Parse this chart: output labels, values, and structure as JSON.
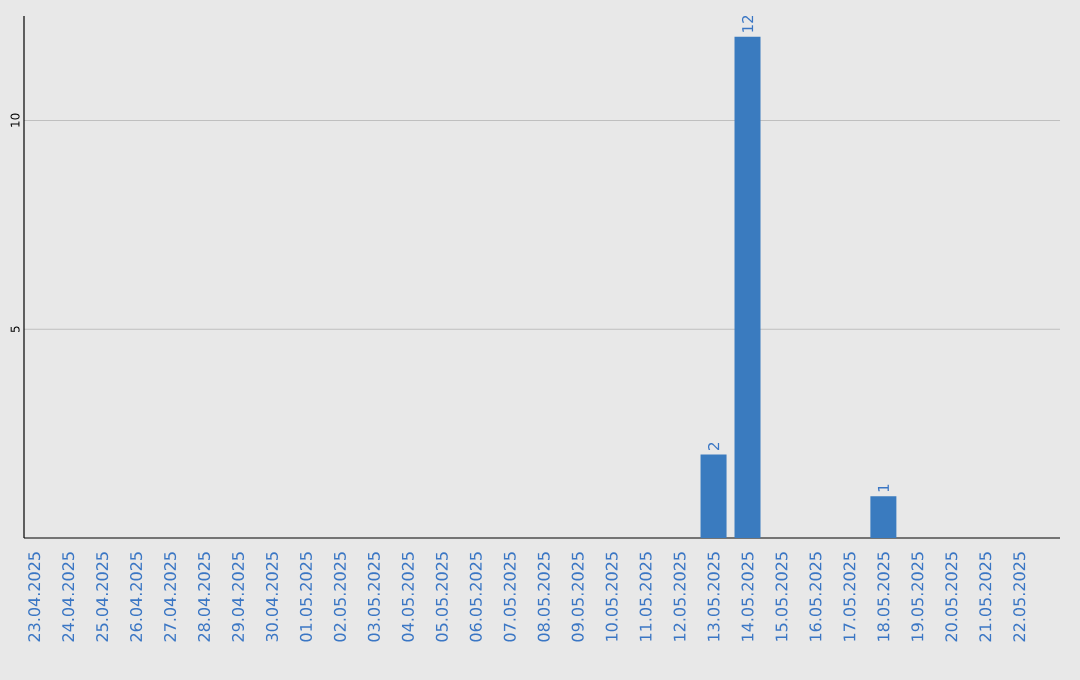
{
  "chart_data": {
    "type": "bar",
    "categories": [
      "23.04.2025",
      "24.04.2025",
      "25.04.2025",
      "26.04.2025",
      "27.04.2025",
      "28.04.2025",
      "29.04.2025",
      "30.04.2025",
      "01.05.2025",
      "02.05.2025",
      "03.05.2025",
      "04.05.2025",
      "05.05.2025",
      "06.05.2025",
      "07.05.2025",
      "08.05.2025",
      "09.05.2025",
      "10.05.2025",
      "11.05.2025",
      "12.05.2025",
      "13.05.2025",
      "14.05.2025",
      "15.05.2025",
      "16.05.2025",
      "17.05.2025",
      "18.05.2025",
      "19.05.2025",
      "20.05.2025",
      "21.05.2025",
      "22.05.2025"
    ],
    "values": [
      0,
      0,
      0,
      0,
      0,
      0,
      0,
      0,
      0,
      0,
      0,
      0,
      0,
      0,
      0,
      0,
      0,
      0,
      0,
      0,
      2,
      12,
      0,
      0,
      0,
      1,
      0,
      0,
      0,
      0
    ],
    "value_labels": [
      null,
      null,
      null,
      null,
      null,
      null,
      null,
      null,
      null,
      null,
      null,
      null,
      null,
      null,
      null,
      null,
      null,
      null,
      null,
      null,
      "2",
      "12",
      null,
      null,
      null,
      "1",
      null,
      null,
      null,
      null
    ],
    "color": "#3a7bbf",
    "ylim": [
      0,
      12.5
    ],
    "yticks": [
      5,
      10
    ],
    "grid": "y"
  }
}
